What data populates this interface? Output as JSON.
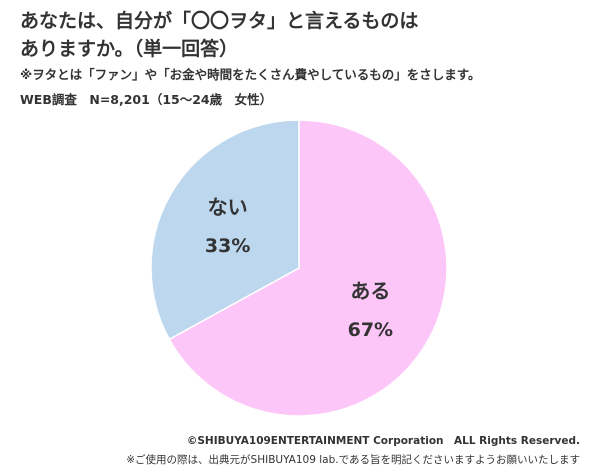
{
  "title_lines": [
    "あなたは、自分が「〇〇ヲタ」と言えるものは",
    "ありますか。（単一回答）"
  ],
  "note": "※ヲタとは「ファン」や「お金や時間をたくさん費やしているもの」をさします。",
  "survey_info": "WEB調査　N=8,201（15～24歳　女性）",
  "chart_data": {
    "type": "pie",
    "title": "あなたは、自分が「〇〇ヲタ」と言えるものは ありますか。（単一回答）",
    "start_angle_deg": 0,
    "direction": "clockwise",
    "slices": [
      {
        "label": "ある",
        "value": 67,
        "value_label": "67%",
        "color": "#fdc6f9"
      },
      {
        "label": "ない",
        "value": 33,
        "value_label": "33%",
        "color": "#bdd7ee"
      }
    ],
    "stroke_color": "#ffffff"
  },
  "footer": {
    "copyright": "©SHIBUYA109ENTERTAINMENT Corporation　ALL Rights Reserved.",
    "usage_note": "※ご使用の際は、出典元がSHIBUYA109 lab.である旨を明記くださいますようお願いいたします"
  }
}
